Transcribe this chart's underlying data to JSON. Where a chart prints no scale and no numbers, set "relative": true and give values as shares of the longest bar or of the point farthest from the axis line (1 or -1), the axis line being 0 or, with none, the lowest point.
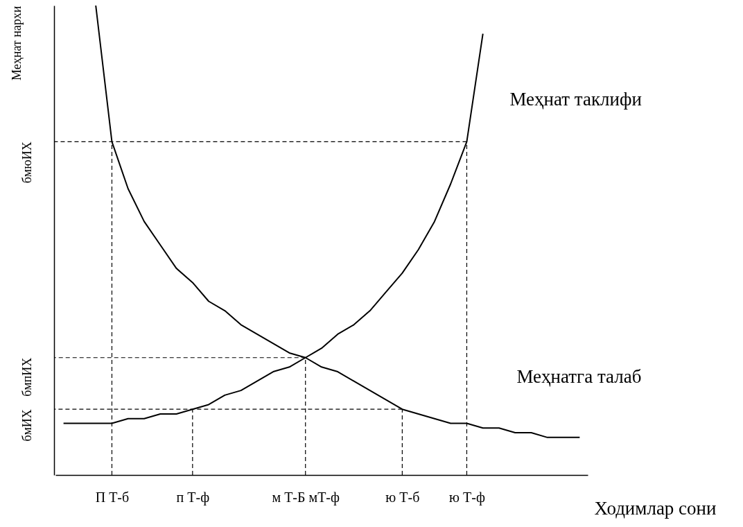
{
  "chart_data": {
    "type": "line",
    "relative": true,
    "xlabel": "Ходимлар сони",
    "ylabel": "Меҳнат нархи",
    "categories": [
      null,
      null,
      null,
      "П Т-б",
      null,
      null,
      null,
      null,
      "п Т-ф",
      null,
      null,
      null,
      null,
      null,
      null,
      "м Т-Б мТ-ф",
      null,
      null,
      null,
      null,
      null,
      "ю Т-б",
      null,
      null,
      null,
      "ю Т-ф",
      null,
      null,
      null,
      null,
      null,
      null,
      null
    ],
    "series": [
      {
        "name": "Меҳнат таклифи",
        "color": "#000000",
        "values": [
          0.11,
          0.11,
          0.11,
          0.11,
          0.12,
          0.12,
          0.13,
          0.13,
          0.14,
          0.15,
          0.17,
          0.18,
          0.2,
          0.22,
          0.23,
          0.25,
          0.27,
          0.3,
          0.32,
          0.35,
          0.39,
          0.43,
          0.48,
          0.54,
          0.62,
          0.71,
          0.94,
          null,
          null,
          null,
          null,
          null,
          null
        ]
      },
      {
        "name": "Меҳнатга талаб",
        "color": "#000000",
        "values": [
          null,
          null,
          1.0,
          0.71,
          0.61,
          0.54,
          0.49,
          0.44,
          0.41,
          0.37,
          0.35,
          0.32,
          0.3,
          0.28,
          0.26,
          0.25,
          0.23,
          0.22,
          0.2,
          0.18,
          0.16,
          0.14,
          0.13,
          0.12,
          0.11,
          0.11,
          0.1,
          0.1,
          0.09,
          0.09,
          0.08,
          0.08,
          0.08
        ]
      }
    ],
    "ref_lines": [
      {
        "axis": "y",
        "value": 0.71,
        "label": "бмюИХ",
        "color": "#000000",
        "line_style": "dashed"
      },
      {
        "axis": "y",
        "value": 0.25,
        "label": "бмпИХ",
        "color": "#000000",
        "line_style": "dashed"
      },
      {
        "axis": "y",
        "value": 0.14,
        "label": "бмИХ",
        "color": "#000000",
        "line_style": "dashed"
      },
      {
        "axis": "x",
        "value": "П Т-б",
        "color": "#000000",
        "line_style": "dashed"
      },
      {
        "axis": "x",
        "value": "п Т-ф",
        "color": "#000000",
        "line_style": "dashed"
      },
      {
        "axis": "x",
        "value": "м Т-Б мТ-ф",
        "color": "#000000",
        "line_style": "dashed"
      },
      {
        "axis": "x",
        "value": "ю Т-б",
        "color": "#000000",
        "line_style": "dashed"
      },
      {
        "axis": "x",
        "value": "ю Т-ф",
        "color": "#000000",
        "line_style": "dashed"
      }
    ],
    "grid": false,
    "marker": "none",
    "line_style": "solid"
  }
}
